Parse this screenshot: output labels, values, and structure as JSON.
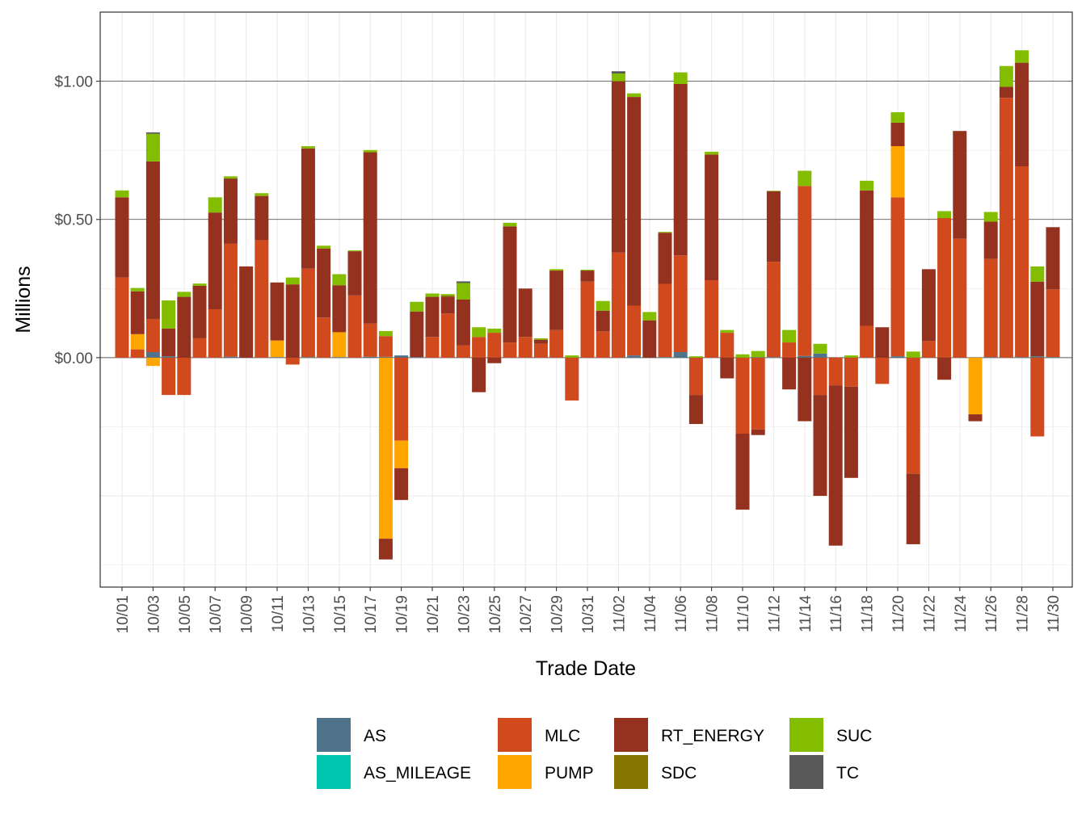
{
  "chart_data": {
    "type": "bar",
    "stacked": true,
    "title": "",
    "xlabel": "Trade Date",
    "ylabel": "Millions",
    "ylim": [
      -0.83,
      1.25
    ],
    "y_ticks": [
      0.0,
      0.5,
      1.0
    ],
    "y_tick_labels": [
      "$0.00",
      "$0.50",
      "$1.00"
    ],
    "legend_position": "bottom",
    "categories": [
      "10/01",
      "10/02",
      "10/03",
      "10/04",
      "10/05",
      "10/06",
      "10/07",
      "10/08",
      "10/09",
      "10/10",
      "10/11",
      "10/12",
      "10/13",
      "10/14",
      "10/15",
      "10/16",
      "10/17",
      "10/18",
      "10/19",
      "10/20",
      "10/21",
      "10/22",
      "10/23",
      "10/24",
      "10/25",
      "10/26",
      "10/27",
      "10/28",
      "10/29",
      "10/30",
      "10/31",
      "11/01",
      "11/02",
      "11/03",
      "11/04",
      "11/05",
      "11/06",
      "11/07",
      "11/08",
      "11/09",
      "11/10",
      "11/11",
      "11/12",
      "11/13",
      "11/14",
      "11/15",
      "11/16",
      "11/17",
      "11/18",
      "11/19",
      "11/20",
      "11/21",
      "11/22",
      "11/23",
      "11/24",
      "11/25",
      "11/26",
      "11/27",
      "11/28",
      "11/29",
      "11/30"
    ],
    "x_tick_labels": [
      "10/01",
      "10/03",
      "10/05",
      "10/07",
      "10/09",
      "10/11",
      "10/13",
      "10/15",
      "10/17",
      "10/19",
      "10/21",
      "10/23",
      "10/25",
      "10/27",
      "10/29",
      "10/31",
      "11/02",
      "11/04",
      "11/06",
      "11/08",
      "11/10",
      "11/12",
      "11/14",
      "11/16",
      "11/18",
      "11/20",
      "11/22",
      "11/24",
      "11/26",
      "11/28",
      "11/30"
    ],
    "series": [
      {
        "name": "AS",
        "color": "#4E738A",
        "values": [
          0,
          0,
          0.02,
          0.005,
          0,
          0,
          0,
          0.003,
          0,
          0,
          0.002,
          0,
          0.002,
          0,
          0.002,
          0,
          0.003,
          0.003,
          0.008,
          0.002,
          0,
          0,
          0,
          0,
          0,
          0,
          0,
          0,
          0,
          0,
          0,
          0,
          0,
          0.008,
          0,
          0.002,
          0.02,
          0,
          0,
          0,
          0,
          0.002,
          0.002,
          0,
          0.006,
          0.015,
          0,
          0,
          0,
          0,
          0.005,
          0,
          0,
          0,
          0,
          0,
          0.002,
          0,
          0.002,
          0.005,
          0.002
        ]
      },
      {
        "name": "AS_MILEAGE",
        "color": "#00C5AF",
        "values": [
          0,
          0,
          0,
          0,
          0,
          0,
          0,
          0,
          0,
          0,
          0,
          0,
          0,
          0,
          0,
          0,
          0,
          0,
          0,
          0,
          0,
          0,
          0,
          0,
          0,
          0,
          0,
          0,
          0,
          0,
          0,
          0,
          0,
          0,
          0,
          0,
          0,
          0,
          0,
          0,
          0,
          0,
          0,
          0,
          0,
          0,
          0,
          0,
          0,
          0,
          0,
          0,
          0,
          0,
          0,
          0,
          0,
          0,
          0,
          0,
          0
        ]
      },
      {
        "name": "MLC",
        "color": "#D04A1E",
        "values": [
          0.29,
          0.03,
          0.12,
          -0.135,
          -0.135,
          0.07,
          0.175,
          0.41,
          0,
          0.425,
          0,
          -0.025,
          0.32,
          0.145,
          0,
          0.225,
          0.12,
          0.075,
          -0.3,
          0,
          0.075,
          0.16,
          0.045,
          0.075,
          0.09,
          0.055,
          0.075,
          0.05,
          0.1,
          -0.155,
          0.275,
          0.095,
          0.38,
          0.18,
          0,
          0.265,
          0.35,
          -0.135,
          0.28,
          0.09,
          -0.275,
          -0.26,
          0.345,
          0.055,
          0.615,
          -0.135,
          -0.1,
          -0.105,
          0.115,
          -0.095,
          0.575,
          -0.42,
          0.06,
          0.505,
          0.43,
          0,
          0.355,
          0.94,
          0.69,
          -0.285,
          0.245
        ]
      },
      {
        "name": "PUMP",
        "color": "#FFA500",
        "values": [
          0,
          0.055,
          -0.03,
          0,
          0,
          0,
          0,
          0,
          0,
          0,
          0.06,
          0,
          0,
          0,
          0.09,
          0,
          0,
          -0.655,
          -0.1,
          0,
          0,
          0,
          0,
          0,
          0,
          0,
          0,
          0,
          0,
          0,
          0,
          0,
          0,
          0,
          0,
          0,
          0,
          0,
          0,
          0,
          0,
          0,
          0,
          0,
          0,
          0,
          0,
          0,
          0,
          0,
          0.185,
          0,
          0,
          0,
          0,
          -0.205,
          0,
          0,
          0,
          0,
          0
        ]
      },
      {
        "name": "RT_ENERGY",
        "color": "#94321F",
        "values": [
          0.29,
          0.155,
          0.57,
          0.1,
          0.22,
          0.19,
          0.35,
          0.235,
          0.33,
          0.16,
          0.21,
          0.265,
          0.435,
          0.25,
          0.17,
          0.16,
          0.62,
          -0.075,
          -0.115,
          0.165,
          0.145,
          0.06,
          0.165,
          -0.125,
          -0.02,
          0.42,
          0.175,
          0.015,
          0.215,
          0,
          0.04,
          0.075,
          0.62,
          0.755,
          0.135,
          0.185,
          0.62,
          -0.105,
          0.455,
          -0.075,
          -0.275,
          -0.02,
          0.255,
          -0.115,
          -0.23,
          -0.365,
          -0.58,
          -0.33,
          0.49,
          0.11,
          0.085,
          -0.255,
          0.26,
          -0.08,
          0.39,
          -0.025,
          0.135,
          0.04,
          0.375,
          0.27,
          0.225
        ]
      },
      {
        "name": "SDC",
        "color": "#857600",
        "values": [
          0,
          0,
          0,
          0,
          0,
          0,
          0,
          0,
          0,
          0,
          0,
          0,
          0,
          0,
          0,
          0,
          0,
          0,
          0,
          0,
          0,
          0.005,
          0,
          0,
          0,
          0,
          0,
          0,
          0,
          0,
          0,
          0,
          0,
          0,
          0,
          0,
          0,
          0,
          0,
          0,
          0,
          0,
          0,
          0,
          0,
          0,
          0,
          0,
          0,
          0,
          0,
          0,
          0,
          0,
          0,
          0,
          0,
          0,
          0,
          0,
          0
        ]
      },
      {
        "name": "SUC",
        "color": "#84BC00",
        "values": [
          0.025,
          0.012,
          0.1,
          0.102,
          0.018,
          0.008,
          0.055,
          0.008,
          0,
          0.01,
          0,
          0.025,
          0.008,
          0.01,
          0.04,
          0.003,
          0.008,
          0.018,
          0,
          0.035,
          0.012,
          0.005,
          0.06,
          0.035,
          0.015,
          0.013,
          0,
          0.005,
          0.005,
          0.008,
          0.003,
          0.035,
          0.028,
          0.013,
          0.03,
          0.003,
          0.042,
          0.005,
          0.01,
          0.01,
          0.012,
          0.022,
          0.002,
          0.045,
          0.055,
          0.035,
          0,
          0.008,
          0.035,
          0,
          0.038,
          0.022,
          0,
          0.025,
          0,
          0,
          0.035,
          0.075,
          0.045,
          0.055,
          0
        ]
      },
      {
        "name": "TC",
        "color": "#595959",
        "values": [
          0,
          0,
          0.005,
          0,
          0,
          0,
          0,
          0,
          0,
          0,
          0,
          0,
          0,
          0,
          0,
          0,
          0,
          0,
          0,
          0,
          0,
          0,
          0.006,
          0,
          0,
          0,
          0,
          0,
          0,
          0,
          0,
          0,
          0.008,
          0,
          0,
          0,
          0,
          0,
          0,
          0,
          0,
          0,
          0,
          0,
          0,
          0,
          0,
          0,
          0,
          0,
          0,
          0,
          0,
          0,
          0,
          0,
          0,
          0,
          0,
          0,
          0
        ]
      }
    ]
  }
}
